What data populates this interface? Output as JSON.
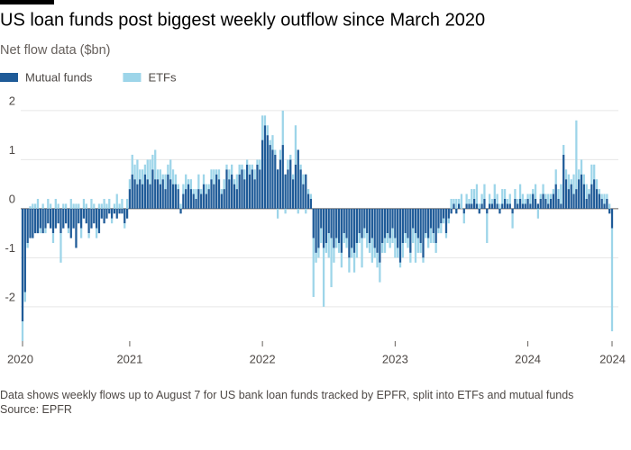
{
  "chart_data": {
    "type": "stacked-bar",
    "title": "US loan funds post biggest weekly outflow since March 2020",
    "subtitle": "Net flow data ($bn)",
    "note": "Data shows weekly flows up to August 7 for US bank loan funds tracked by EPFR, split into ETFs and mutual funds",
    "source": "Source: EPFR",
    "legend": "top-left",
    "grid": true,
    "ylim": [
      -2.7,
      2.2
    ],
    "yticks": [
      2,
      1,
      0,
      -1,
      -2
    ],
    "categories": [
      "2020",
      null,
      null,
      null,
      null,
      null,
      null,
      null,
      null,
      null,
      null,
      null,
      null,
      null,
      null,
      null,
      null,
      null,
      null,
      null,
      null,
      null,
      null,
      null,
      null,
      null,
      null,
      null,
      null,
      null,
      null,
      null,
      null,
      null,
      null,
      null,
      null,
      null,
      null,
      null,
      null,
      null,
      "2021",
      null,
      null,
      null,
      null,
      null,
      null,
      null,
      null,
      null,
      null,
      null,
      null,
      null,
      null,
      null,
      null,
      null,
      null,
      null,
      null,
      null,
      null,
      null,
      null,
      null,
      null,
      null,
      null,
      null,
      null,
      null,
      null,
      null,
      null,
      null,
      null,
      null,
      null,
      null,
      null,
      null,
      null,
      null,
      null,
      null,
      null,
      null,
      null,
      null,
      null,
      null,
      "2022",
      null,
      null,
      null,
      null,
      null,
      null,
      null,
      null,
      null,
      null,
      null,
      null,
      null,
      null,
      null,
      null,
      null,
      null,
      null,
      null,
      null,
      null,
      null,
      null,
      null,
      null,
      null,
      null,
      null,
      null,
      null,
      null,
      null,
      null,
      null,
      null,
      null,
      null,
      null,
      null,
      null,
      null,
      null,
      null,
      null,
      null,
      null,
      null,
      null,
      null,
      null,
      "2023",
      null,
      null,
      null,
      null,
      null,
      null,
      null,
      null,
      null,
      null,
      null,
      null,
      null,
      null,
      null,
      null,
      null,
      null,
      null,
      null,
      null,
      null,
      null,
      null,
      null,
      null,
      null,
      null,
      null,
      null,
      null,
      null,
      null,
      null,
      null,
      null,
      null,
      null,
      null,
      null,
      null,
      null,
      null,
      null,
      null,
      null,
      null,
      null,
      null,
      null,
      null,
      "2024",
      null,
      null,
      null,
      null,
      null,
      null,
      null,
      null,
      null,
      null,
      null,
      null,
      null,
      null,
      null,
      null,
      null,
      null,
      null,
      null,
      null,
      null,
      null,
      null,
      null,
      null,
      null,
      null,
      null,
      null,
      null,
      null,
      "2024"
    ],
    "series": [
      {
        "name": "Mutual funds",
        "color": "#1f5b98",
        "values": [
          -2.3,
          -1.7,
          -0.7,
          -0.6,
          -0.6,
          -0.5,
          -0.5,
          -0.4,
          -0.5,
          -0.4,
          -0.3,
          -0.4,
          -0.5,
          -0.4,
          -0.3,
          -0.5,
          -0.4,
          -0.3,
          -0.4,
          -0.6,
          -0.4,
          -0.8,
          -0.3,
          -0.4,
          -0.2,
          -0.3,
          -0.5,
          -0.4,
          -0.3,
          -0.4,
          -0.5,
          -0.2,
          -0.3,
          -0.2,
          -0.1,
          -0.2,
          -0.1,
          -0.2,
          -0.1,
          -0.1,
          -0.3,
          -0.2,
          0.4,
          0.7,
          0.6,
          0.5,
          0.6,
          0.5,
          0.7,
          0.6,
          0.5,
          0.8,
          0.6,
          0.6,
          0.5,
          0.6,
          0.4,
          0.7,
          0.6,
          0.5,
          0.5,
          0.4,
          -0.1,
          0.3,
          0.4,
          0.5,
          0.4,
          0.3,
          0.2,
          0.4,
          0.3,
          0.5,
          0.3,
          0.4,
          0.6,
          0.5,
          0.7,
          0.6,
          0.3,
          0.4,
          0.8,
          0.6,
          0.7,
          0.5,
          0.4,
          0.7,
          0.8,
          0.6,
          0.9,
          0.7,
          0.8,
          0.6,
          0.9,
          0.8,
          1.4,
          1.7,
          1.5,
          1.3,
          1.2,
          1.1,
          0.8,
          1.0,
          1.3,
          0.7,
          0.8,
          1.0,
          0.6,
          0.9,
          1.2,
          0.8,
          0.5,
          0.7,
          0.3,
          0.2,
          -0.6,
          -0.9,
          -0.8,
          -0.4,
          -0.8,
          -0.7,
          -0.5,
          -0.6,
          -0.8,
          -0.6,
          -0.7,
          -0.9,
          -0.5,
          -0.6,
          -1.0,
          -0.8,
          -0.9,
          -0.7,
          -0.5,
          -0.6,
          -0.4,
          -0.5,
          -0.7,
          -0.6,
          -0.8,
          -0.9,
          -1.1,
          -0.7,
          -0.6,
          -0.5,
          -0.6,
          -0.4,
          -0.6,
          -0.8,
          -1.1,
          -0.7,
          -0.5,
          -0.6,
          -0.9,
          -0.4,
          -0.5,
          -0.6,
          -0.7,
          -1.0,
          -0.5,
          -0.6,
          -0.4,
          -0.5,
          -0.7,
          -0.4,
          -0.3,
          -0.2,
          -0.5,
          -0.2,
          -0.1,
          0.1,
          -0.1,
          0.1,
          0.0,
          -0.1,
          0.1,
          0.1,
          0.1,
          0.2,
          0.1,
          -0.1,
          0.1,
          0.2,
          -0.1,
          0.1,
          0.1,
          0.2,
          0.1,
          -0.1,
          0.1,
          0.2,
          0.1,
          0.1,
          -0.1,
          0.2,
          0.1,
          0.2,
          0.1,
          0.1,
          0.2,
          0.1,
          0.3,
          0.2,
          0.1,
          0.2,
          0.3,
          0.2,
          0.1,
          0.2,
          0.3,
          0.5,
          0.2,
          0.1,
          1.1,
          0.6,
          0.4,
          0.5,
          0.3,
          0.4,
          0.6,
          0.7,
          0.5,
          0.2,
          0.3,
          0.5,
          0.6,
          0.4,
          0.3,
          0.2,
          0.1,
          0.2,
          -0.1,
          -0.4
        ]
      },
      {
        "name": "ETFs",
        "color": "#9dd5e9",
        "values": [
          -0.4,
          -0.2,
          -0.1,
          0.05,
          0.1,
          0.1,
          0.2,
          -0.1,
          0.1,
          -0.1,
          0.2,
          0.1,
          -0.2,
          0.2,
          0.1,
          -0.6,
          0.1,
          0.1,
          -0.1,
          0.2,
          0.1,
          0.1,
          0.1,
          -0.2,
          0.2,
          0.1,
          -0.1,
          0.2,
          0.1,
          -0.2,
          0.1,
          0.1,
          0.2,
          0.1,
          0.2,
          -0.1,
          0.1,
          0.3,
          0.1,
          0.2,
          -0.1,
          0.2,
          0.2,
          0.4,
          0.3,
          0.5,
          0.2,
          0.3,
          0.2,
          0.4,
          0.5,
          0.3,
          0.6,
          0.2,
          0.3,
          0.1,
          0.3,
          0.2,
          0.4,
          0.3,
          0.2,
          0.1,
          0.1,
          0.2,
          0.3,
          0.1,
          0.2,
          0.1,
          0.2,
          0.3,
          0.1,
          0.2,
          0.2,
          0.1,
          0.2,
          0.3,
          0.1,
          0.2,
          0.1,
          0.2,
          0.1,
          0.2,
          0.2,
          0.1,
          0.3,
          0.2,
          0.1,
          0.2,
          0.1,
          0.2,
          0.1,
          0.2,
          0.1,
          0.2,
          0.5,
          0.2,
          0.2,
          0.1,
          0.3,
          0.1,
          -0.2,
          0.2,
          0.7,
          -0.1,
          0.2,
          0.1,
          0.1,
          0.8,
          -0.1,
          0.1,
          0.2,
          -0.1,
          0.1,
          0.1,
          -1.2,
          -0.2,
          -0.2,
          -0.3,
          -1.2,
          -0.2,
          -0.5,
          -1.0,
          -0.3,
          -0.2,
          -0.2,
          -0.3,
          -0.2,
          -0.2,
          -0.3,
          -0.2,
          -0.4,
          -0.3,
          -0.2,
          -0.6,
          -0.2,
          -0.3,
          -0.2,
          -0.5,
          -0.2,
          -0.3,
          -0.4,
          -0.2,
          -0.3,
          -0.2,
          -0.2,
          -0.3,
          -0.4,
          -0.2,
          -0.1,
          -0.3,
          -0.2,
          -0.2,
          -0.2,
          -0.3,
          -0.6,
          -0.3,
          -0.2,
          -0.1,
          -0.1,
          -0.2,
          -0.3,
          -0.2,
          -0.2,
          -0.1,
          -0.2,
          -0.1,
          -0.1,
          -0.1,
          0.2,
          0.1,
          0.2,
          0.1,
          0.3,
          -0.2,
          0.2,
          0.1,
          0.3,
          0.2,
          0.4,
          0.1,
          0.2,
          0.3,
          -0.6,
          0.2,
          0.1,
          0.3,
          0.2,
          0.1,
          0.3,
          0.2,
          0.1,
          0.2,
          -0.3,
          0.2,
          0.1,
          0.3,
          0.2,
          0.1,
          0.1,
          0.2,
          0.1,
          0.3,
          -0.2,
          0.1,
          0.2,
          0.1,
          0.2,
          0.1,
          0.1,
          0.3,
          0.2,
          0.4,
          0.2,
          0.2,
          0.3,
          0.1,
          0.4,
          1.4,
          0.2,
          0.3,
          0.2,
          0.3,
          0.1,
          0.4,
          0.3,
          0.2,
          0.1,
          0.1,
          0.2,
          0.1,
          0.1,
          -2.1
        ]
      }
    ]
  }
}
